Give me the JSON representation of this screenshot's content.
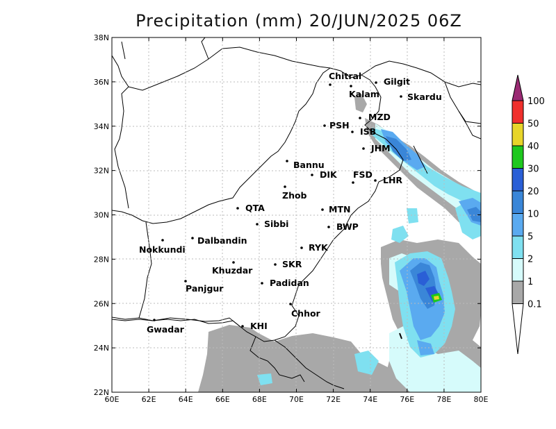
{
  "title": "Precipitation (mm) 20/JUN/2025 06Z",
  "map": {
    "lon_ticks": [
      "60E",
      "62E",
      "64E",
      "66E",
      "68E",
      "70E",
      "72E",
      "74E",
      "76E",
      "78E",
      "80E"
    ],
    "lat_ticks": [
      "22N",
      "24N",
      "26N",
      "28N",
      "30N",
      "32N",
      "34N",
      "36N",
      "38N"
    ],
    "gridlines": true,
    "cities": [
      {
        "name": "Chitral"
      },
      {
        "name": "Gilgit"
      },
      {
        "name": "Kalam"
      },
      {
        "name": "Skardu"
      },
      {
        "name": "MZD"
      },
      {
        "name": "PSH"
      },
      {
        "name": "ISB"
      },
      {
        "name": "JHM"
      },
      {
        "name": "Bannu"
      },
      {
        "name": "DIK"
      },
      {
        "name": "FSD"
      },
      {
        "name": "LHR"
      },
      {
        "name": "Zhob"
      },
      {
        "name": "QTA"
      },
      {
        "name": "MTN"
      },
      {
        "name": "Sibbi"
      },
      {
        "name": "BWP"
      },
      {
        "name": "Nokkundi"
      },
      {
        "name": "Dalbandin"
      },
      {
        "name": "RYK"
      },
      {
        "name": "Khuzdar"
      },
      {
        "name": "SKR"
      },
      {
        "name": "Panjgur"
      },
      {
        "name": "Padidan"
      },
      {
        "name": "Chhor"
      },
      {
        "name": "Gwadar"
      },
      {
        "name": "KHI"
      }
    ]
  },
  "colorbar": {
    "levels": [
      "100",
      "50",
      "40",
      "30",
      "20",
      "10",
      "5",
      "2",
      "1",
      "0.1"
    ],
    "colors": [
      "#9a2a73",
      "#f0302c",
      "#e8d52a",
      "#1ec81e",
      "#2a5fd6",
      "#3a86d8",
      "#5aaaf0",
      "#7fe0f0",
      "#d6fbfb",
      "#a8a8a8"
    ]
  }
}
